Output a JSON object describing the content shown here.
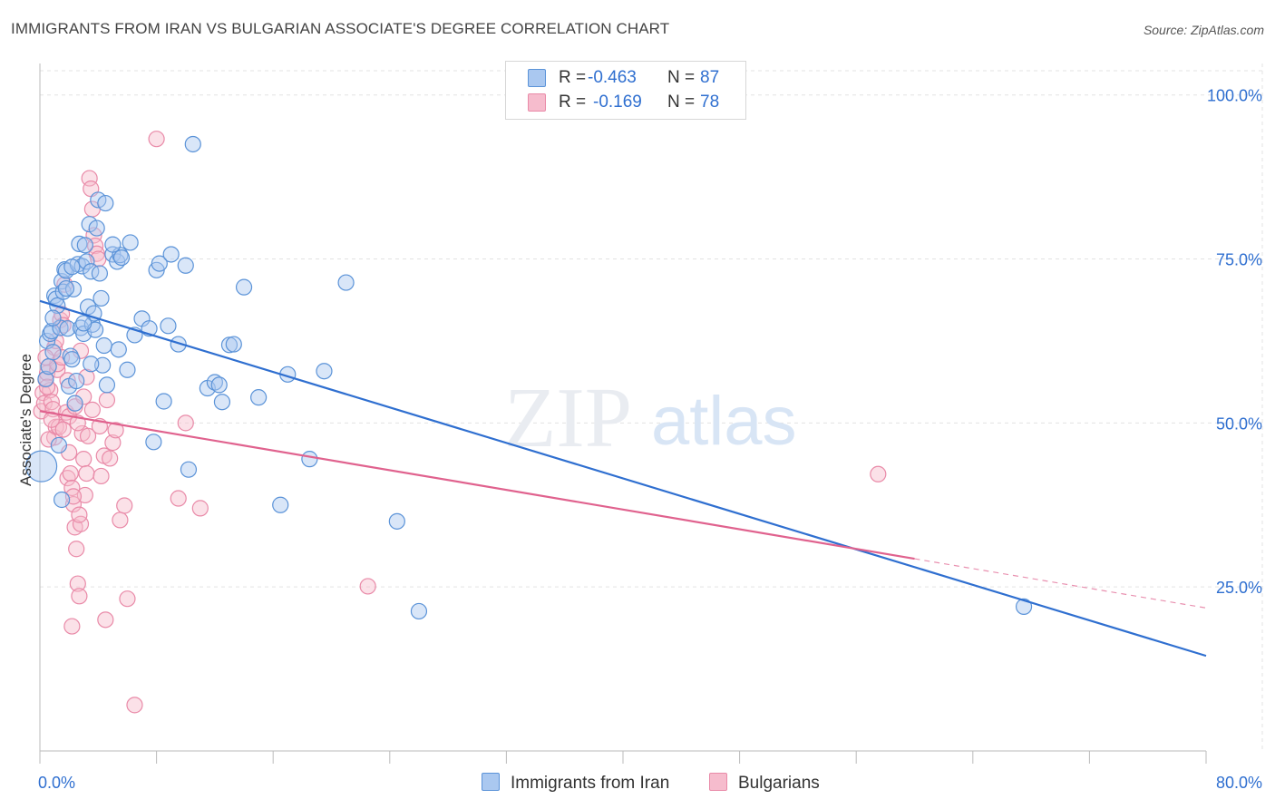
{
  "title": "IMMIGRANTS FROM IRAN VS BULGARIAN ASSOCIATE'S DEGREE CORRELATION CHART",
  "source": "Source: ZipAtlas.com",
  "watermark": {
    "zip": "ZIP",
    "atlas": "atlas"
  },
  "legend": {
    "rows": [
      {
        "r_label": "R =",
        "r_value": "-0.463",
        "n_label": "N =",
        "n_value": "87"
      },
      {
        "r_label": "R =",
        "r_value": "-0.169",
        "n_label": "N =",
        "n_value": "78"
      }
    ]
  },
  "bottom_legend": {
    "iran": "Immigrants from Iran",
    "bulgarians": "Bulgarians"
  },
  "colors": {
    "iran_fill": "#aac8f0",
    "iran_stroke": "#5b93d8",
    "iran_line": "#2f6fd0",
    "bulg_fill": "#f6bccd",
    "bulg_stroke": "#e98aa8",
    "bulg_line": "#e0628e",
    "tick_text": "#2f6fd0",
    "grid": "#e3e3e3"
  },
  "chart_data": {
    "type": "scatter",
    "xlabel": "",
    "ylabel": "Associate's Degree",
    "xlim": [
      0,
      80
    ],
    "ylim": [
      0,
      104.8
    ],
    "x_tick_labels": [
      {
        "value": 0,
        "label": "0.0%"
      },
      {
        "value": 80,
        "label": "80.0%"
      }
    ],
    "y_tick_labels": [
      {
        "value": 25,
        "label": "25.0%"
      },
      {
        "value": 50,
        "label": "50.0%"
      },
      {
        "value": 75,
        "label": "75.0%"
      },
      {
        "value": 100,
        "label": "100.0%"
      }
    ],
    "grid": true,
    "series": [
      {
        "name": "Immigrants from Iran",
        "r": -0.463,
        "n": 87,
        "trend": {
          "x": [
            0,
            80
          ],
          "y": [
            68.6,
            14.5
          ]
        },
        "points": [
          [
            0.1,
            43.4
          ],
          [
            0.4,
            56.7
          ],
          [
            0.5,
            62.5
          ],
          [
            0.6,
            58.6
          ],
          [
            0.7,
            63.6
          ],
          [
            0.8,
            64.0
          ],
          [
            0.9,
            60.8
          ],
          [
            1.0,
            69.4
          ],
          [
            1.1,
            68.9
          ],
          [
            1.2,
            67.9
          ],
          [
            1.3,
            46.6
          ],
          [
            1.4,
            64.5
          ],
          [
            1.5,
            71.6
          ],
          [
            1.6,
            70.0
          ],
          [
            1.7,
            73.4
          ],
          [
            1.8,
            73.2
          ],
          [
            1.9,
            64.4
          ],
          [
            2.0,
            55.6
          ],
          [
            2.1,
            60.2
          ],
          [
            2.2,
            59.7
          ],
          [
            2.3,
            70.4
          ],
          [
            2.4,
            53.0
          ],
          [
            2.5,
            56.4
          ],
          [
            2.6,
            74.2
          ],
          [
            2.7,
            77.3
          ],
          [
            2.8,
            64.5
          ],
          [
            2.9,
            73.9
          ],
          [
            3.0,
            63.6
          ],
          [
            3.1,
            77.1
          ],
          [
            3.2,
            74.6
          ],
          [
            3.3,
            67.7
          ],
          [
            3.4,
            80.3
          ],
          [
            3.5,
            73.1
          ],
          [
            3.6,
            65.0
          ],
          [
            3.7,
            66.7
          ],
          [
            3.8,
            64.2
          ],
          [
            3.9,
            79.7
          ],
          [
            4.0,
            84.0
          ],
          [
            4.1,
            72.8
          ],
          [
            4.2,
            69.0
          ],
          [
            4.3,
            58.8
          ],
          [
            4.4,
            61.8
          ],
          [
            4.5,
            83.5
          ],
          [
            4.6,
            55.8
          ],
          [
            5.0,
            75.7
          ],
          [
            5.3,
            74.6
          ],
          [
            5.4,
            61.2
          ],
          [
            5.5,
            75.6
          ],
          [
            5.6,
            75.2
          ],
          [
            6.0,
            58.1
          ],
          [
            6.2,
            77.5
          ],
          [
            6.5,
            63.4
          ],
          [
            7.0,
            65.9
          ],
          [
            7.5,
            64.4
          ],
          [
            7.8,
            47.1
          ],
          [
            8.0,
            73.3
          ],
          [
            8.2,
            74.3
          ],
          [
            8.5,
            53.3
          ],
          [
            9.0,
            75.7
          ],
          [
            9.5,
            62.0
          ],
          [
            10.0,
            74.0
          ],
          [
            10.5,
            92.5
          ],
          [
            11.5,
            55.3
          ],
          [
            12.0,
            56.2
          ],
          [
            12.5,
            53.2
          ],
          [
            13.0,
            61.9
          ],
          [
            14.0,
            70.7
          ],
          [
            15.0,
            53.9
          ],
          [
            17.0,
            57.4
          ],
          [
            18.5,
            44.5
          ],
          [
            19.5,
            57.9
          ],
          [
            21.0,
            71.4
          ],
          [
            24.5,
            35.0
          ],
          [
            26.0,
            21.3
          ],
          [
            67.5,
            22.0
          ],
          [
            1.5,
            38.3
          ],
          [
            3.5,
            59.0
          ],
          [
            5.0,
            77.2
          ],
          [
            8.8,
            64.8
          ],
          [
            10.2,
            42.9
          ],
          [
            12.3,
            55.8
          ],
          [
            13.3,
            62.0
          ],
          [
            16.5,
            37.5
          ],
          [
            3.0,
            65.2
          ],
          [
            1.8,
            70.5
          ],
          [
            2.2,
            73.8
          ],
          [
            0.9,
            66.0
          ]
        ]
      },
      {
        "name": "Bulgarians",
        "r": -0.169,
        "n": 78,
        "trend": {
          "x": [
            0,
            60
          ],
          "y": [
            51.8,
            29.3
          ]
        },
        "trend_dashed": {
          "x": [
            60,
            80
          ],
          "y": [
            29.3,
            21.8
          ]
        },
        "points": [
          [
            0.1,
            51.8
          ],
          [
            0.2,
            54.6
          ],
          [
            0.3,
            53.0
          ],
          [
            0.4,
            56.6
          ],
          [
            0.5,
            57.6
          ],
          [
            0.6,
            58.6
          ],
          [
            0.7,
            55.0
          ],
          [
            0.8,
            53.2
          ],
          [
            0.9,
            52.1
          ],
          [
            1.0,
            47.8
          ],
          [
            1.1,
            49.4
          ],
          [
            1.2,
            58.1
          ],
          [
            1.3,
            49.4
          ],
          [
            1.4,
            65.7
          ],
          [
            1.5,
            66.6
          ],
          [
            1.6,
            64.9
          ],
          [
            1.7,
            71.1
          ],
          [
            1.8,
            51.6
          ],
          [
            1.9,
            41.6
          ],
          [
            2.0,
            51.0
          ],
          [
            2.1,
            42.3
          ],
          [
            2.2,
            40.1
          ],
          [
            2.3,
            37.6
          ],
          [
            2.4,
            34.1
          ],
          [
            2.5,
            30.8
          ],
          [
            2.6,
            25.5
          ],
          [
            2.7,
            23.6
          ],
          [
            2.8,
            34.6
          ],
          [
            2.9,
            48.4
          ],
          [
            3.0,
            44.5
          ],
          [
            3.1,
            39.0
          ],
          [
            3.2,
            42.3
          ],
          [
            3.3,
            48.0
          ],
          [
            3.4,
            87.3
          ],
          [
            3.5,
            85.7
          ],
          [
            3.6,
            82.6
          ],
          [
            3.7,
            78.6
          ],
          [
            3.8,
            77.0
          ],
          [
            3.9,
            75.8
          ],
          [
            4.0,
            75.0
          ],
          [
            4.2,
            41.9
          ],
          [
            4.4,
            45.0
          ],
          [
            4.6,
            53.5
          ],
          [
            4.8,
            44.6
          ],
          [
            5.0,
            47.0
          ],
          [
            5.2,
            48.9
          ],
          [
            5.5,
            35.2
          ],
          [
            5.8,
            37.4
          ],
          [
            6.0,
            23.2
          ],
          [
            6.5,
            7.0
          ],
          [
            8.0,
            93.3
          ],
          [
            9.5,
            38.5
          ],
          [
            10.0,
            50.0
          ],
          [
            11.0,
            37.0
          ],
          [
            22.5,
            25.1
          ],
          [
            57.5,
            42.2
          ],
          [
            2.2,
            19.0
          ],
          [
            4.5,
            20.0
          ],
          [
            1.0,
            61.5
          ],
          [
            1.2,
            59.0
          ],
          [
            0.5,
            55.5
          ],
          [
            0.8,
            50.5
          ],
          [
            1.6,
            49.0
          ],
          [
            2.0,
            45.5
          ],
          [
            2.4,
            52.5
          ],
          [
            2.8,
            61.0
          ],
          [
            3.0,
            54.0
          ],
          [
            3.2,
            57.0
          ],
          [
            1.5,
            60.0
          ],
          [
            0.6,
            47.5
          ],
          [
            1.9,
            56.5
          ],
          [
            2.6,
            50.0
          ],
          [
            3.6,
            52.0
          ],
          [
            4.1,
            49.5
          ],
          [
            2.3,
            38.8
          ],
          [
            1.1,
            62.5
          ],
          [
            0.4,
            60.0
          ],
          [
            2.7,
            36.0
          ]
        ]
      }
    ]
  }
}
